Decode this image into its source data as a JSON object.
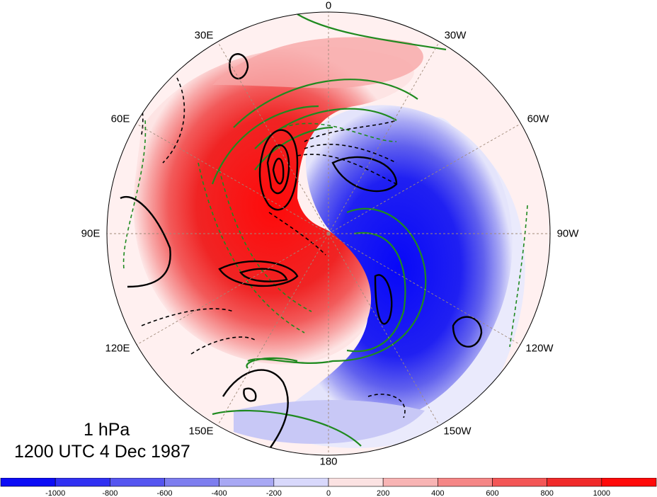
{
  "map": {
    "projection": "north-polar-stereographic",
    "longitude_labels": {
      "lon_0": "0",
      "lon_30w": "30W",
      "lon_60w": "60W",
      "lon_90w": "90W",
      "lon_120w": "120W",
      "lon_150w": "150W",
      "lon_180": "180",
      "lon_150e": "150E",
      "lon_120e": "120E",
      "lon_90e": "90E",
      "lon_60e": "60E",
      "lon_30e": "30E"
    },
    "level": "1 hPa",
    "time": "1200 UTC 4 Dec 1987",
    "fill_colors": {
      "positive_max": "#ff1010",
      "negative_max": "#0a0aff",
      "neutral": "#ffffff"
    },
    "contour_colors": {
      "black": "#000000",
      "green": "#1f8a1f",
      "coast": "#a08a7a"
    }
  },
  "colorbar": {
    "ticks": [
      "-1000",
      "-800",
      "-600",
      "-400",
      "-200",
      "0",
      "200",
      "400",
      "600",
      "800",
      "1000"
    ],
    "colors": [
      "#0c0cf5",
      "#3030f2",
      "#5555f0",
      "#7d7def",
      "#a8a8f4",
      "#d8d8fb",
      "#fbe2e2",
      "#f8b4b4",
      "#f58686",
      "#f35656",
      "#f02a2a",
      "#ff0a0a"
    ]
  }
}
